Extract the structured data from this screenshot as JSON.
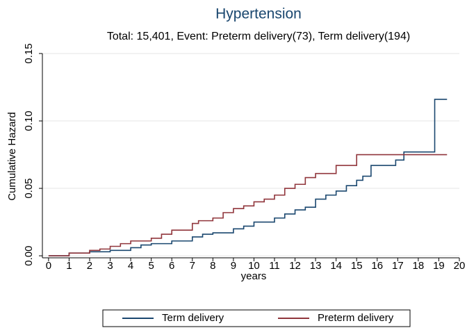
{
  "chart_data": {
    "type": "step",
    "title": "Hypertension",
    "subtitle": "Total: 15,401, Event: Preterm delivery(73), Term delivery(194)",
    "x_label": "years",
    "y_label": "Cumulative Hazard",
    "xlim": [
      -0.3,
      20
    ],
    "xticks": [
      0,
      1,
      2,
      3,
      4,
      5,
      6,
      7,
      8,
      9,
      10,
      11,
      12,
      13,
      14,
      15,
      16,
      17,
      18,
      19,
      20
    ],
    "ylim": [
      -0.0015,
      0.15
    ],
    "yticks": [
      {
        "value": 0,
        "label": "0.00"
      },
      {
        "value": 0.05,
        "label": "0.05"
      },
      {
        "value": 0.1,
        "label": "0.10"
      },
      {
        "value": 0.15,
        "label": "0.15"
      }
    ],
    "grid": true,
    "legend_position": "bottom",
    "series": [
      {
        "name": "Term delivery",
        "color": "#1a476f",
        "x": [
          0,
          1,
          2,
          3,
          4,
          4.5,
          5,
          6,
          7,
          7.5,
          8,
          9,
          9.5,
          10,
          11,
          11.5,
          12,
          12.5,
          13,
          13.5,
          14,
          14.5,
          15,
          15.3,
          15.7,
          16.9,
          17.3,
          18.8,
          19.4
        ],
        "values": [
          0,
          0.002,
          0.003,
          0.004,
          0.006,
          0.008,
          0.009,
          0.011,
          0.014,
          0.016,
          0.017,
          0.02,
          0.022,
          0.025,
          0.028,
          0.031,
          0.034,
          0.036,
          0.042,
          0.045,
          0.048,
          0.052,
          0.056,
          0.059,
          0.067,
          0.071,
          0.077,
          0.116,
          0.116
        ]
      },
      {
        "name": "Preterm delivery",
        "color": "#90353b",
        "x": [
          0,
          1,
          2,
          2.5,
          3,
          3.5,
          4,
          5,
          5.5,
          6,
          7,
          7.3,
          8,
          8.5,
          9,
          9.5,
          10,
          10.5,
          11,
          11.5,
          12,
          12.5,
          13,
          14,
          15,
          19.4
        ],
        "values": [
          0,
          0.002,
          0.004,
          0.005,
          0.007,
          0.009,
          0.011,
          0.013,
          0.016,
          0.019,
          0.024,
          0.026,
          0.028,
          0.032,
          0.035,
          0.037,
          0.04,
          0.042,
          0.045,
          0.05,
          0.053,
          0.058,
          0.061,
          0.067,
          0.075,
          0.075
        ]
      }
    ]
  }
}
